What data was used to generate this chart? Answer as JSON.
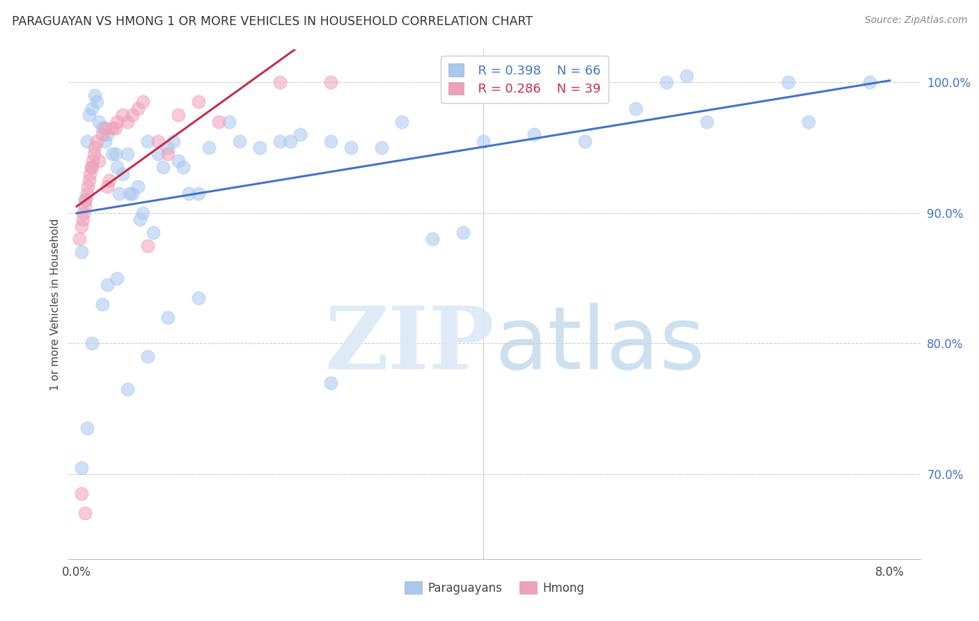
{
  "title": "PARAGUAYAN VS HMONG 1 OR MORE VEHICLES IN HOUSEHOLD CORRELATION CHART",
  "source": "Source: ZipAtlas.com",
  "ylabel": "1 or more Vehicles in Household",
  "legend_blue_r": "R = 0.398",
  "legend_blue_n": "N = 66",
  "legend_pink_r": "R = 0.286",
  "legend_pink_n": "N = 39",
  "blue_color": "#a8c8f0",
  "pink_color": "#f0a0b8",
  "line_blue": "#4472c4",
  "line_pink": "#c0304a",
  "blue_x": [
    0.05,
    0.08,
    0.1,
    0.12,
    0.15,
    0.18,
    0.2,
    0.22,
    0.25,
    0.28,
    0.3,
    0.35,
    0.38,
    0.4,
    0.42,
    0.45,
    0.5,
    0.52,
    0.55,
    0.6,
    0.62,
    0.65,
    0.7,
    0.75,
    0.8,
    0.85,
    0.9,
    0.95,
    1.0,
    1.05,
    1.1,
    1.2,
    1.3,
    1.5,
    1.6,
    1.8,
    2.0,
    2.1,
    2.2,
    2.5,
    2.7,
    3.0,
    3.2,
    3.5,
    3.8,
    4.0,
    4.5,
    5.0,
    5.5,
    5.8,
    6.0,
    6.2,
    7.0,
    7.2,
    7.8,
    0.05,
    0.1,
    0.15,
    0.25,
    0.3,
    0.4,
    0.5,
    0.7,
    0.9,
    1.2,
    2.5
  ],
  "blue_y": [
    87.0,
    91.0,
    95.5,
    97.5,
    98.0,
    99.0,
    98.5,
    97.0,
    96.5,
    95.5,
    96.0,
    94.5,
    94.5,
    93.5,
    91.5,
    93.0,
    94.5,
    91.5,
    91.5,
    92.0,
    89.5,
    90.0,
    95.5,
    88.5,
    94.5,
    93.5,
    95.0,
    95.5,
    94.0,
    93.5,
    91.5,
    91.5,
    95.0,
    97.0,
    95.5,
    95.0,
    95.5,
    95.5,
    96.0,
    95.5,
    95.0,
    95.0,
    97.0,
    88.0,
    88.5,
    95.5,
    96.0,
    95.5,
    98.0,
    100.0,
    100.5,
    97.0,
    100.0,
    97.0,
    100.0,
    70.5,
    73.5,
    80.0,
    83.0,
    84.5,
    85.0,
    76.5,
    79.0,
    82.0,
    83.5,
    77.0
  ],
  "pink_x": [
    0.03,
    0.05,
    0.06,
    0.07,
    0.08,
    0.09,
    0.1,
    0.11,
    0.12,
    0.13,
    0.14,
    0.15,
    0.16,
    0.17,
    0.18,
    0.2,
    0.22,
    0.25,
    0.28,
    0.3,
    0.32,
    0.35,
    0.38,
    0.4,
    0.45,
    0.5,
    0.55,
    0.6,
    0.65,
    0.7,
    0.8,
    0.9,
    1.0,
    1.2,
    1.4,
    2.0,
    2.5,
    0.05,
    0.08
  ],
  "pink_y": [
    88.0,
    89.0,
    89.5,
    90.0,
    90.5,
    91.0,
    91.5,
    92.0,
    92.5,
    93.0,
    93.5,
    93.5,
    94.0,
    94.5,
    95.0,
    95.5,
    94.0,
    96.0,
    96.5,
    92.0,
    92.5,
    96.5,
    96.5,
    97.0,
    97.5,
    97.0,
    97.5,
    98.0,
    98.5,
    87.5,
    95.5,
    94.5,
    97.5,
    98.5,
    97.0,
    100.0,
    100.0,
    68.5,
    67.0
  ]
}
